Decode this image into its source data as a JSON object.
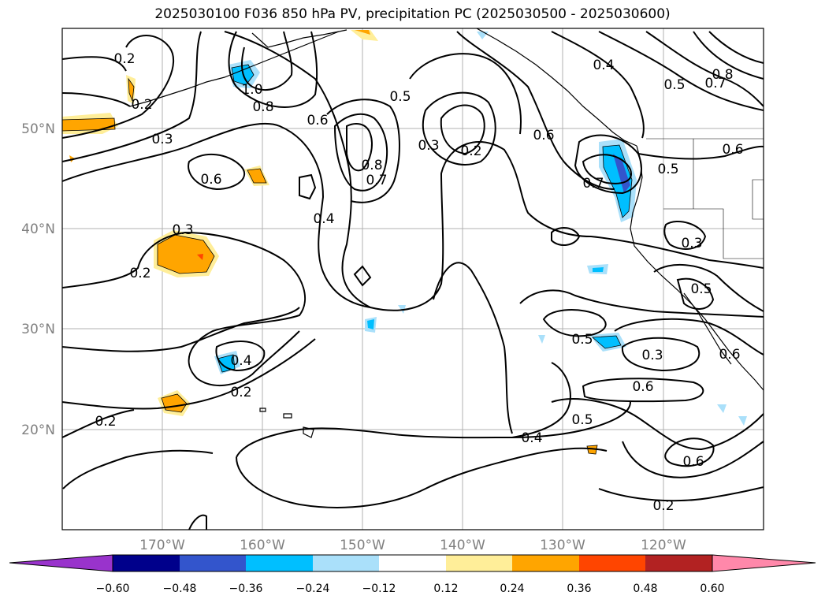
{
  "title": "2025030100 F036 850 hPa PV, precipitation PC (2025030500 - 2025030600)",
  "map": {
    "lon_range": [
      -180,
      -110
    ],
    "lat_range": [
      10,
      60
    ],
    "lon_labels": [
      "170°W",
      "160°W",
      "150°W",
      "140°W",
      "130°W",
      "120°W"
    ],
    "lat_labels": [
      "50°N",
      "40°N",
      "30°N",
      "20°N"
    ],
    "contour_labels": [
      "0.2",
      "0.2",
      "0.3",
      "0.6",
      "1.0",
      "0.8",
      "0.6",
      "0.8",
      "0.7",
      "0.5",
      "0.3",
      "0.2",
      "0.6",
      "0.4",
      "0.5",
      "0.7",
      "0.8",
      "0.6",
      "0.7",
      "0.5",
      "0.3",
      "0.4",
      "0.2",
      "0.4",
      "0.2",
      "0.2",
      "0.4",
      "0.5",
      "0.3",
      "0.6",
      "0.5",
      "0.5",
      "0.6",
      "0.3",
      "0.6",
      "0.2"
    ]
  },
  "colorbar": {
    "colors": [
      "#9933cc",
      "#00008b",
      "#3355cc",
      "#00bfff",
      "#aae0fa",
      "#ffffff",
      "#ffee99",
      "#ffa500",
      "#ff4500",
      "#b22222",
      "#ff88aa"
    ],
    "ticks": [
      "−0.60",
      "−0.48",
      "−0.36",
      "−0.24",
      "−0.12",
      "0.12",
      "0.24",
      "0.36",
      "0.48",
      "0.60"
    ]
  },
  "colors": {
    "grid": "#b0b0b0",
    "contour": "#000000",
    "axis_text": "#808080"
  }
}
